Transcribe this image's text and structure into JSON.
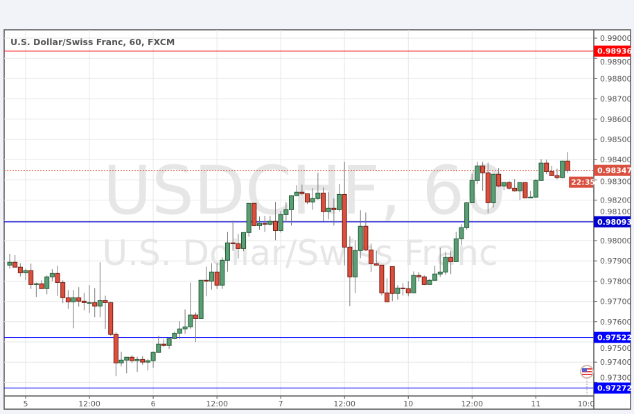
{
  "chart_data": {
    "type": "candlestick",
    "title": "U.S. Dollar/Swiss Franc, 60, FXCM",
    "watermark": {
      "symbol": "USDCHF, 60",
      "name": "U.S. Dollar/Swiss Franc"
    },
    "ylim": [
      0.9727,
      0.9904
    ],
    "grid": true,
    "y_ticks": [
      "0.99000",
      "0.98900",
      "0.98800",
      "0.98700",
      "0.98600",
      "0.98500",
      "0.98400",
      "0.98300",
      "0.98200",
      "0.98100",
      "0.98000",
      "0.97900",
      "0.97800",
      "0.97700",
      "0.97600",
      "0.97500",
      "0.97400",
      "0.97300"
    ],
    "x_ticks": [
      "5",
      "12:00",
      "6",
      "12:00",
      "7",
      "12:00",
      "10",
      "12:00",
      "11"
    ],
    "x_cursor_label": "10:0",
    "colors": {
      "up": "#5b9d74",
      "up_border": "#1f5a34",
      "down": "#dc4f3d",
      "down_border": "#6e1a12",
      "wick": "#777777"
    },
    "candles": [
      [
        0.97879,
        0.97935,
        0.97862,
        0.97893
      ],
      [
        0.97893,
        0.97928,
        0.97869,
        0.97869
      ],
      [
        0.97869,
        0.97889,
        0.97823,
        0.97841
      ],
      [
        0.97841,
        0.97862,
        0.97804,
        0.97852
      ],
      [
        0.97852,
        0.97887,
        0.97761,
        0.97783
      ],
      [
        0.97783,
        0.97793,
        0.97722,
        0.97787
      ],
      [
        0.97787,
        0.97804,
        0.97763,
        0.97763
      ],
      [
        0.97763,
        0.97828,
        0.97735,
        0.97821
      ],
      [
        0.97821,
        0.97859,
        0.978,
        0.97838
      ],
      [
        0.97838,
        0.97876,
        0.97727,
        0.97793
      ],
      [
        0.97793,
        0.97804,
        0.97691,
        0.97718
      ],
      [
        0.97718,
        0.97756,
        0.97663,
        0.97698
      ],
      [
        0.97698,
        0.97756,
        0.97567,
        0.97718
      ],
      [
        0.97718,
        0.9777,
        0.97674,
        0.97701
      ],
      [
        0.97701,
        0.97742,
        0.97656,
        0.97694
      ],
      [
        0.97694,
        0.9778,
        0.97643,
        0.97694
      ],
      [
        0.97694,
        0.97766,
        0.97622,
        0.97677
      ],
      [
        0.97677,
        0.97893,
        0.97622,
        0.97704
      ],
      [
        0.97704,
        0.97728,
        0.97564,
        0.97694
      ],
      [
        0.97694,
        0.97697,
        0.9753,
        0.97537
      ],
      [
        0.97537,
        0.97547,
        0.97331,
        0.97396
      ],
      [
        0.97396,
        0.97451,
        0.97379,
        0.9741
      ],
      [
        0.9741,
        0.97424,
        0.97345,
        0.97424
      ],
      [
        0.97424,
        0.97434,
        0.97396,
        0.97407
      ],
      [
        0.97407,
        0.97427,
        0.97352,
        0.97413
      ],
      [
        0.97413,
        0.9743,
        0.97386,
        0.974
      ],
      [
        0.974,
        0.97417,
        0.97359,
        0.97407
      ],
      [
        0.97407,
        0.97453,
        0.97372,
        0.97448
      ],
      [
        0.97448,
        0.9753,
        0.97448,
        0.97489
      ],
      [
        0.97489,
        0.97513,
        0.97475,
        0.97482
      ],
      [
        0.97482,
        0.97522,
        0.97465,
        0.97516
      ],
      [
        0.97516,
        0.9755,
        0.97513,
        0.97543
      ],
      [
        0.97543,
        0.97602,
        0.97513,
        0.97564
      ],
      [
        0.97564,
        0.9766,
        0.9754,
        0.97574
      ],
      [
        0.97574,
        0.97793,
        0.97564,
        0.97633
      ],
      [
        0.97633,
        0.97646,
        0.97499,
        0.97615
      ],
      [
        0.97615,
        0.97804,
        0.97615,
        0.97804
      ],
      [
        0.97804,
        0.97872,
        0.97725,
        0.978
      ],
      [
        0.978,
        0.97889,
        0.97758,
        0.97845
      ],
      [
        0.97845,
        0.97889,
        0.97761,
        0.9778
      ],
      [
        0.9778,
        0.97917,
        0.97761,
        0.97903
      ],
      [
        0.97903,
        0.98043,
        0.97847,
        0.97989
      ],
      [
        0.97989,
        0.98098,
        0.9795,
        0.97985
      ],
      [
        0.97985,
        0.98033,
        0.97912,
        0.97961
      ],
      [
        0.97961,
        0.9804,
        0.97948,
        0.9804
      ],
      [
        0.9804,
        0.98184,
        0.9802,
        0.98184
      ],
      [
        0.98184,
        0.98184,
        0.98071,
        0.98074
      ],
      [
        0.98074,
        0.98119,
        0.98054,
        0.98085
      ],
      [
        0.98085,
        0.98122,
        0.98043,
        0.98081
      ],
      [
        0.98081,
        0.98122,
        0.98074,
        0.98095
      ],
      [
        0.98095,
        0.98191,
        0.98002,
        0.9805
      ],
      [
        0.9805,
        0.98146,
        0.9804,
        0.98129
      ],
      [
        0.98129,
        0.98191,
        0.98091,
        0.98153
      ],
      [
        0.98153,
        0.98225,
        0.98074,
        0.98222
      ],
      [
        0.98222,
        0.98273,
        0.98222,
        0.98239
      ],
      [
        0.98239,
        0.98276,
        0.98225,
        0.98232
      ],
      [
        0.98232,
        0.98232,
        0.9818,
        0.98191
      ],
      [
        0.98191,
        0.98259,
        0.98153,
        0.98208
      ],
      [
        0.98208,
        0.98335,
        0.98201,
        0.98235
      ],
      [
        0.98235,
        0.98263,
        0.98095,
        0.98143
      ],
      [
        0.98143,
        0.98239,
        0.98105,
        0.9816
      ],
      [
        0.9816,
        0.98208,
        0.98074,
        0.98153
      ],
      [
        0.98153,
        0.9828,
        0.98143,
        0.98228
      ],
      [
        0.98228,
        0.98389,
        0.97878,
        0.97968
      ],
      [
        0.97968,
        0.98023,
        0.97677,
        0.97821
      ],
      [
        0.97821,
        0.98002,
        0.97741,
        0.97951
      ],
      [
        0.97951,
        0.9815,
        0.97913,
        0.98071
      ],
      [
        0.98071,
        0.98139,
        0.97948,
        0.97954
      ],
      [
        0.97954,
        0.97985,
        0.97845,
        0.97886
      ],
      [
        0.97886,
        0.97951,
        0.97876,
        0.97879
      ],
      [
        0.97879,
        0.97879,
        0.9773,
        0.97742
      ],
      [
        0.97742,
        0.97814,
        0.97698,
        0.97698
      ],
      [
        0.97872,
        0.97872,
        0.97701,
        0.97739
      ],
      [
        0.97739,
        0.9778,
        0.97708,
        0.97766
      ],
      [
        0.97766,
        0.9779,
        0.97728,
        0.97763
      ],
      [
        0.97763,
        0.978,
        0.97725,
        0.97742
      ],
      [
        0.97742,
        0.97848,
        0.97742,
        0.97828
      ],
      [
        0.97828,
        0.97845,
        0.978,
        0.97821
      ],
      [
        0.97821,
        0.97828,
        0.9778,
        0.97783
      ],
      [
        0.97783,
        0.97811,
        0.97783,
        0.97804
      ],
      [
        0.97804,
        0.97876,
        0.97804,
        0.97835
      ],
      [
        0.97835,
        0.97965,
        0.97821,
        0.97845
      ],
      [
        0.97845,
        0.97944,
        0.97831,
        0.97917
      ],
      [
        0.97917,
        0.97948,
        0.97835,
        0.97896
      ],
      [
        0.97896,
        0.98043,
        0.97896,
        0.98009
      ],
      [
        0.98009,
        0.98081,
        0.97978,
        0.98064
      ],
      [
        0.98064,
        0.98191,
        0.98054,
        0.98187
      ],
      [
        0.98187,
        0.98331,
        0.98187,
        0.98297
      ],
      [
        0.98297,
        0.98389,
        0.9828,
        0.98369
      ],
      [
        0.98369,
        0.98389,
        0.98246,
        0.98335
      ],
      [
        0.98335,
        0.98386,
        0.98136,
        0.98187
      ],
      [
        0.98187,
        0.98328,
        0.98163,
        0.98328
      ],
      [
        0.98328,
        0.98359,
        0.98263,
        0.9827
      ],
      [
        0.9827,
        0.98287,
        0.98249,
        0.98287
      ],
      [
        0.98287,
        0.98294,
        0.98252,
        0.98259
      ],
      [
        0.98259,
        0.98304,
        0.98242,
        0.98246
      ],
      [
        0.98246,
        0.98287,
        0.98201,
        0.98287
      ],
      [
        0.98287,
        0.98287,
        0.98211,
        0.98211
      ],
      [
        0.98211,
        0.98246,
        0.98211,
        0.98215
      ],
      [
        0.98215,
        0.98304,
        0.98211,
        0.98297
      ],
      [
        0.98297,
        0.98403,
        0.98297,
        0.98383
      ],
      [
        0.98383,
        0.984,
        0.98328,
        0.98341
      ],
      [
        0.98341,
        0.98369,
        0.98321,
        0.98321
      ],
      [
        0.98321,
        0.98355,
        0.98304,
        0.98311
      ],
      [
        0.98311,
        0.98393,
        0.98307,
        0.98393
      ],
      [
        0.98393,
        0.98437,
        0.98335,
        0.98347
      ]
    ],
    "horizontal_lines": [
      {
        "price": 0.98936,
        "label": "0.98936",
        "color": "#ff0000",
        "style": "solid"
      },
      {
        "price": 0.98347,
        "label": "0.98347",
        "color": "#d9503f",
        "style": "dotted"
      },
      {
        "price": 0.98093,
        "label": "0.98093",
        "color": "#0000cc",
        "style": "solid"
      },
      {
        "price": 0.97522,
        "label": "0.97522",
        "color": "#0000ff",
        "style": "solid"
      },
      {
        "price": 0.97272,
        "label": "0.97272",
        "color": "#0000ff",
        "style": "solid"
      }
    ],
    "countdown": "22:35",
    "event_icon": "us-flag-icon"
  }
}
